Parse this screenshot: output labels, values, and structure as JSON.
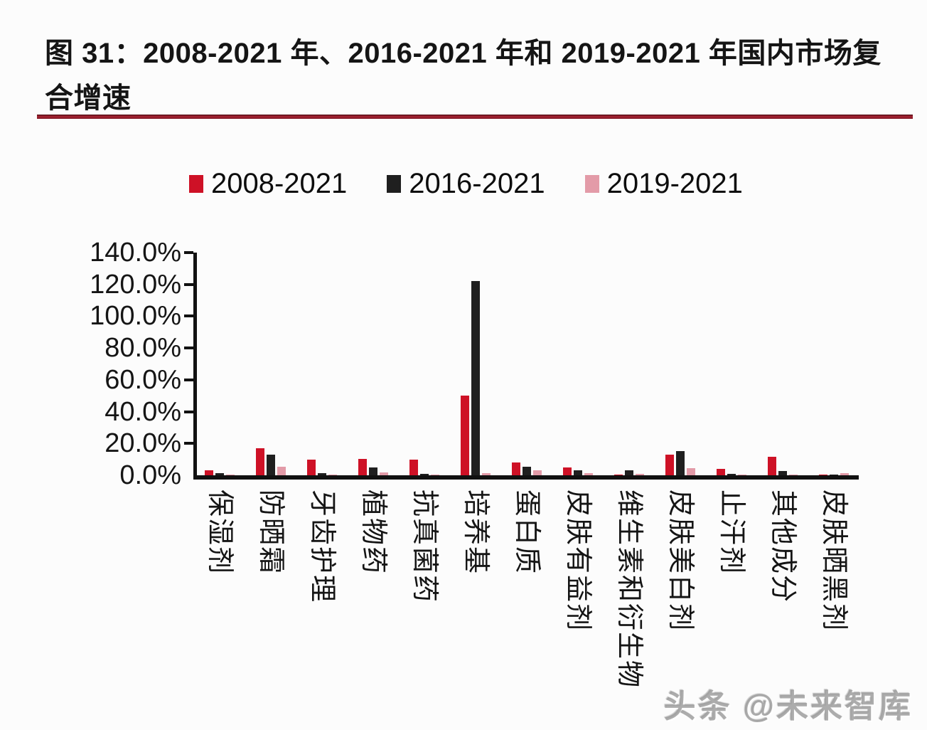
{
  "page": {
    "background": "#fcfcfc"
  },
  "figure": {
    "title_line1": "图 31：2008-2021 年、2016-2021 年和 2019-2021 年国内市场复",
    "title_line2": "合增速",
    "divider_color": "#8f1d2c"
  },
  "watermark": {
    "text": "头条 @未来智库"
  },
  "chart_data": {
    "type": "bar",
    "title": "图 31：2008-2021 年、2016-2021 年和 2019-2021 年国内市场复合增速",
    "categories": [
      "保湿剂",
      "防晒霜",
      "牙齿护理",
      "植物药",
      "抗真菌药",
      "培养基",
      "蛋白质",
      "皮肤有益剂",
      "维生素和衍生物",
      "皮肤美白剂",
      "止汗剂",
      "其他成分",
      "皮肤晒黑剂"
    ],
    "series": [
      {
        "name": "2008-2021",
        "color": "#ce1126",
        "values": [
          3.0,
          17.0,
          10.0,
          10.5,
          10.0,
          50.0,
          8.0,
          5.0,
          0.5,
          13.0,
          4.0,
          11.5,
          0.3
        ]
      },
      {
        "name": "2016-2021",
        "color": "#1f1f1f",
        "values": [
          1.5,
          13.0,
          1.5,
          5.0,
          1.0,
          122.0,
          5.5,
          3.0,
          3.0,
          15.0,
          1.0,
          2.5,
          0.3
        ]
      },
      {
        "name": "2019-2021",
        "color": "#e39ba8",
        "values": [
          0.5,
          5.5,
          0.5,
          2.0,
          0.5,
          1.5,
          3.0,
          1.5,
          1.0,
          4.5,
          0.5,
          0.5,
          1.5
        ]
      }
    ],
    "xlabel": "",
    "ylabel": "",
    "ylim": [
      0,
      140
    ],
    "y_tick_step": 20,
    "y_tick_labels": [
      "0.0%",
      "20.0%",
      "40.0%",
      "60.0%",
      "80.0%",
      "100.0%",
      "120.0%",
      "140.0%"
    ],
    "grid": false,
    "legend_position": "top",
    "axis_color": "#111111",
    "unit": "percent"
  }
}
